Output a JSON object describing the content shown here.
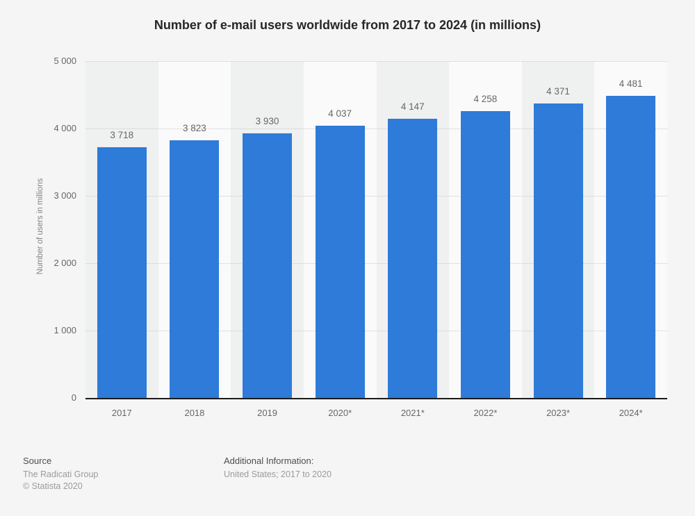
{
  "chart_data": {
    "type": "bar",
    "title": "Number of e-mail users worldwide from 2017 to 2024 (in millions)",
    "categories": [
      "2017",
      "2018",
      "2019",
      "2020*",
      "2021*",
      "2022*",
      "2023*",
      "2024*"
    ],
    "values": [
      3718,
      3823,
      3930,
      4037,
      4147,
      4258,
      4371,
      4481
    ],
    "value_labels": [
      "3 718",
      "3 823",
      "3 930",
      "4 037",
      "4 147",
      "4 258",
      "4 371",
      "4 481"
    ],
    "xlabel": "",
    "ylabel": "Number of users in millions",
    "ylim": [
      0,
      5000
    ],
    "yticks": [
      0,
      1000,
      2000,
      3000,
      4000,
      5000
    ],
    "ytick_labels": [
      "0",
      "1 000",
      "2 000",
      "3 000",
      "4 000",
      "5 000"
    ],
    "grid": "horizontal-dotted",
    "legend": "none",
    "bar_color": "#2e7bd9"
  },
  "colors": {
    "page_background": "#f5f5f5",
    "band_dark": "#eff0f0",
    "band_light": "#fafafa",
    "gridline": "#c9c9c9",
    "axis_line": "#1a1a1a",
    "title_text": "#262626",
    "tick_text": "#666666",
    "muted_text": "#9b9b9b"
  },
  "footer": {
    "source_label": "Source",
    "source_line1": "The Radicati Group",
    "source_line2": "© Statista 2020",
    "additional_label": "Additional Information:",
    "additional_line1": "United States; 2017 to 2020"
  }
}
